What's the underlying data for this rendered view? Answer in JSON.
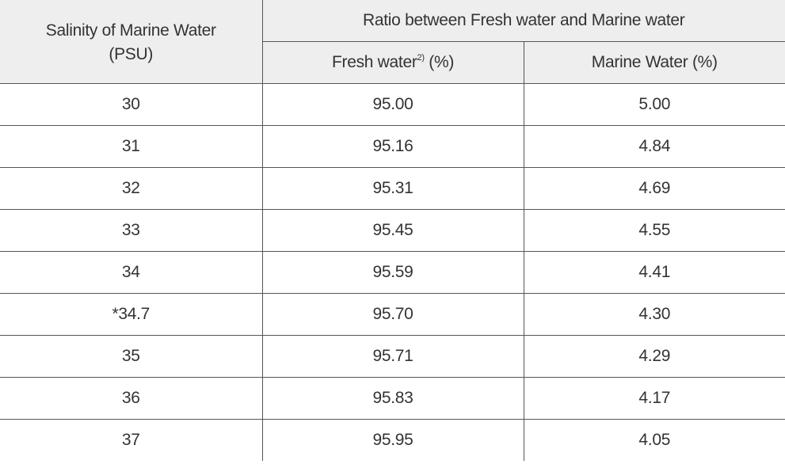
{
  "table": {
    "headers": {
      "salinity_line1": "Salinity of Marine Water",
      "salinity_line2": "(PSU)",
      "ratio_group": "Ratio between Fresh water and Marine water",
      "fresh_water": "Fresh water",
      "fresh_water_note": "2)",
      "fresh_water_unit": " (%)",
      "marine_water": "Marine Water (%)"
    },
    "rows": [
      {
        "salinity": "30",
        "fresh": "95.00",
        "marine": "5.00"
      },
      {
        "salinity": "31",
        "fresh": "95.16",
        "marine": "4.84"
      },
      {
        "salinity": "32",
        "fresh": "95.31",
        "marine": "4.69"
      },
      {
        "salinity": "33",
        "fresh": "95.45",
        "marine": "4.55"
      },
      {
        "salinity": "34",
        "fresh": "95.59",
        "marine": "4.41"
      },
      {
        "salinity": "*34.7",
        "fresh": "95.70",
        "marine": "4.30"
      },
      {
        "salinity": "35",
        "fresh": "95.71",
        "marine": "4.29"
      },
      {
        "salinity": "36",
        "fresh": "95.83",
        "marine": "4.17"
      },
      {
        "salinity": "37",
        "fresh": "95.95",
        "marine": "4.05"
      }
    ]
  }
}
